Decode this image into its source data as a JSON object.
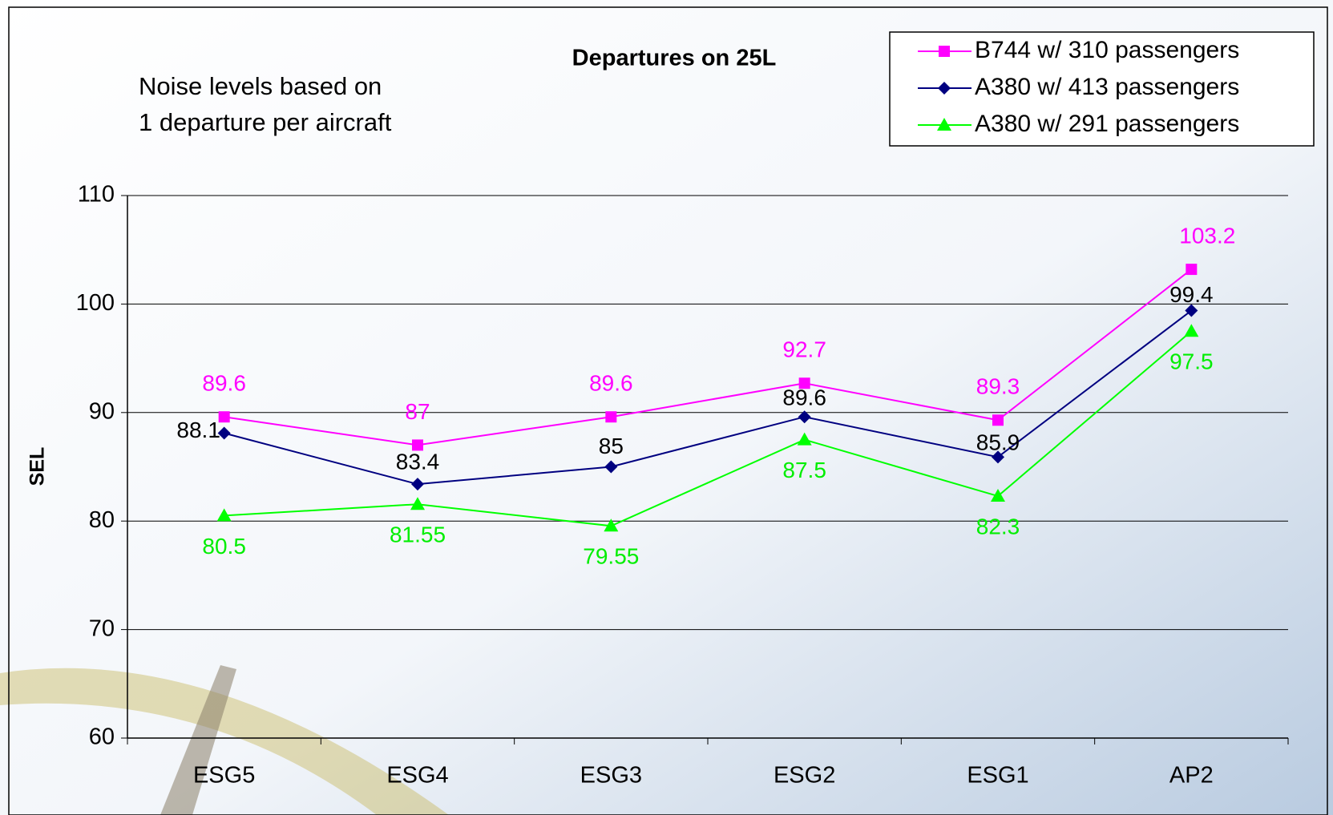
{
  "chart_data": {
    "type": "line",
    "title": "Departures on 25L",
    "note": [
      "Noise levels based on",
      "1 departure per aircraft"
    ],
    "ylabel": "SEL",
    "categories": [
      "ESG5",
      "ESG4",
      "ESG3",
      "ESG2",
      "ESG1",
      "AP2"
    ],
    "series": [
      {
        "name": "B744 w/ 310 passengers",
        "color": "#ff00ff",
        "marker": "square",
        "values": [
          89.6,
          87,
          89.6,
          92.7,
          89.3,
          103.2
        ]
      },
      {
        "name": "A380 w/ 413 passengers",
        "color": "#000080",
        "marker": "diamond",
        "values": [
          88.1,
          83.4,
          85,
          89.6,
          85.9,
          99.4
        ]
      },
      {
        "name": "A380 w/ 291 passengers",
        "color": "#00ff00",
        "marker": "triangle",
        "values": [
          80.5,
          81.55,
          79.55,
          87.5,
          82.3,
          97.5
        ]
      }
    ],
    "ylim": [
      60,
      110
    ],
    "yticks": [
      60,
      70,
      80,
      90,
      100,
      110
    ],
    "grid": true,
    "legend": "top-right"
  }
}
